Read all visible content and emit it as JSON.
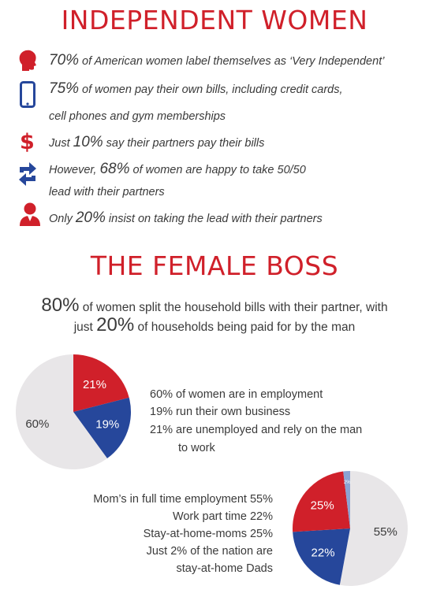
{
  "colors": {
    "red": "#d0202a",
    "blue": "#26479b",
    "grey": "#e8e6e8",
    "light_blue": "#8aa3d2",
    "text": "#3a3a3a"
  },
  "header1": "INDEPENDENT WOMEN",
  "facts": [
    {
      "icon": "woman-head-icon",
      "num": "70%",
      "text": " of American women label themselves as ‘Very Independent’"
    },
    {
      "icon": "smartphone-icon",
      "num": "75%",
      "text": " of women pay their own bills, including credit cards,",
      "text2": "cell phones and gym memberships"
    },
    {
      "icon": "dollar-icon",
      "pre": "Just ",
      "num": "10%",
      "text": " say their partners pay their bills"
    },
    {
      "icon": "arrows-swap-icon",
      "pre": "However, ",
      "num": "68%",
      "text": " of women are happy to take 50/50",
      "text2": "lead with their partners"
    },
    {
      "icon": "businesswoman-icon",
      "pre": "Only ",
      "num": "20%",
      "text": " insist on taking the lead with their partners"
    }
  ],
  "header2": "THE FEMALE BOSS",
  "boss_stat": {
    "num1": "80%",
    "line1": " of women split the household bills with their partner, with",
    "pre2": "just ",
    "num2": "20%",
    "line2": " of households being paid for by the man"
  },
  "chart_data": [
    {
      "type": "pie",
      "categories": [
        "In employment",
        "Run their own business",
        "Unemployed and rely on the man to work"
      ],
      "values": [
        60,
        19,
        21
      ],
      "labels": [
        "60%",
        "19%",
        "21%"
      ],
      "colors": [
        "#e8e6e8",
        "#26479b",
        "#d0202a"
      ],
      "notes": [
        "60% of women are in employment",
        "19% run their own business",
        "21% are unemployed and rely on the man",
        "to work"
      ]
    },
    {
      "type": "pie",
      "categories": [
        "Mom’s in full time employment",
        "Work part time",
        "Stay-at-home-moms",
        "Stay-at-home Dads"
      ],
      "values": [
        55,
        22,
        25,
        2
      ],
      "labels": [
        "55%",
        "22%",
        "25%",
        "2%"
      ],
      "colors": [
        "#e8e6e8",
        "#26479b",
        "#d0202a",
        "#8aa3d2"
      ],
      "notes": [
        "Mom’s in full time employment 55%",
        "Work part time 22%",
        "Stay-at-home-moms 25%",
        "Just 2% of the nation are",
        "stay-at-home Dads"
      ]
    }
  ]
}
